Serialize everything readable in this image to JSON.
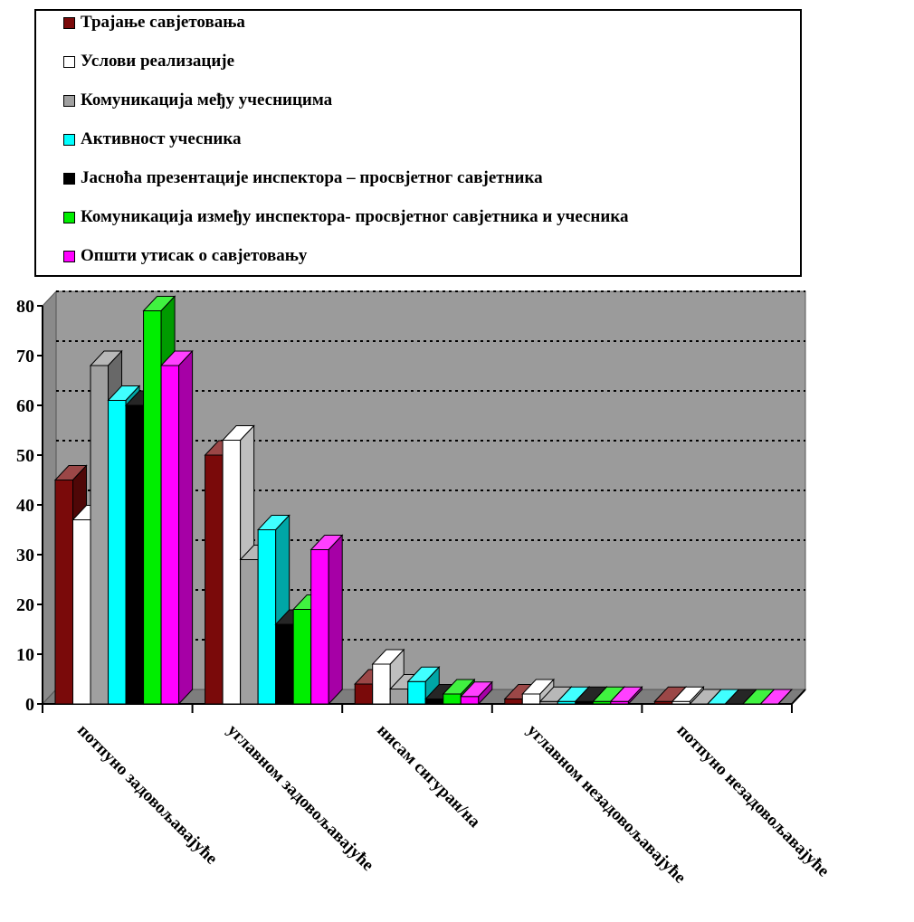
{
  "chart_data": {
    "type": "bar",
    "categories": [
      "потпуно задовољавајуће",
      "углавном задовољавајуће",
      "нисам сигуран/на",
      "углавном незадовољавајуће",
      "потпуно незадовољавајуће"
    ],
    "series": [
      {
        "name": "Трајање савјетовања",
        "color": "#7a0a0a",
        "values": [
          45,
          50,
          4,
          1,
          0.5
        ]
      },
      {
        "name": "Услови реализације",
        "color": "#ffffff",
        "values": [
          37,
          53,
          8,
          2,
          0.5
        ]
      },
      {
        "name": "Комуникација међу учесницима",
        "color": "#a0a0a0",
        "values": [
          68,
          29,
          3,
          0.5,
          0
        ]
      },
      {
        "name": "Активност учесника",
        "color": "#00ffff",
        "values": [
          61,
          35,
          4.5,
          0.5,
          0
        ]
      },
      {
        "name": "Јасноћа презентације инспектора – просвјетног савјетника",
        "color": "#000000",
        "values": [
          60,
          16,
          1,
          0.5,
          0
        ]
      },
      {
        "name": "Комуникација између инспектора- просвјетног савјетника и учесника",
        "color": "#00ee00",
        "values": [
          79,
          19,
          2,
          0.5,
          0
        ]
      },
      {
        "name": "Општи утисак о савјетовању",
        "color": "#ff00ff",
        "values": [
          68,
          31,
          1.5,
          0.5,
          0
        ]
      }
    ],
    "yticks": [
      "0",
      "10",
      "20",
      "30",
      "40",
      "50",
      "60",
      "70",
      "80"
    ],
    "ylim": [
      0,
      80
    ],
    "grid": true,
    "legend_position": "top"
  }
}
